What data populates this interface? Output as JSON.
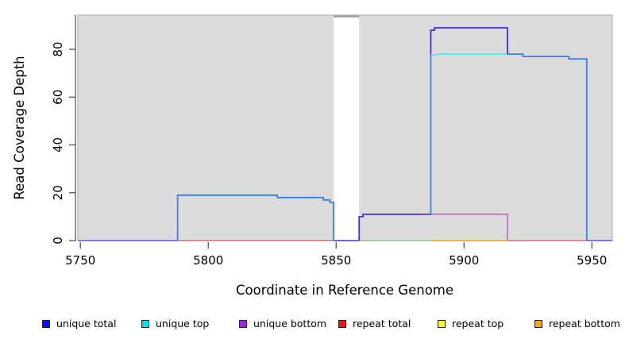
{
  "figure": {
    "plot_bg": "#DBDBDB",
    "gap_fill": "#FFFFFF",
    "gap_cap_color": "#A5A5A5",
    "box_color": "#ABABAB",
    "axis_color": "#474747",
    "tick_label_color": "#000000"
  },
  "axes": {
    "xlabel": "Coordinate in Reference Genome",
    "ylabel": "Read Coverage Depth",
    "x_ticks": [
      "5750",
      "5800",
      "5850",
      "5900",
      "5950"
    ],
    "y_ticks": [
      "0",
      "20",
      "40",
      "60",
      "80"
    ]
  },
  "legend": {
    "items": [
      {
        "label": "unique total",
        "color": "#1111EE"
      },
      {
        "label": "unique top",
        "color": "#00E1EA"
      },
      {
        "label": "unique bottom",
        "color": "#A020F0"
      },
      {
        "label": "repeat total",
        "color": "#EA1515"
      },
      {
        "label": "repeat top",
        "color": "#FCF52E"
      },
      {
        "label": "repeat bottom",
        "color": "#F6A21C"
      }
    ]
  },
  "chart_data": {
    "type": "line",
    "title": "",
    "xlabel": "Coordinate in Reference Genome",
    "ylabel": "Read Coverage Depth",
    "xlim": [
      5749,
      5958
    ],
    "ylim": [
      0,
      94.3
    ],
    "x_tick_values": [
      5750,
      5800,
      5850,
      5900,
      5950
    ],
    "y_tick_values": [
      0,
      20,
      40,
      60,
      80
    ],
    "grid": false,
    "legend_position": "bottom",
    "gap_region": {
      "x_start": 5849,
      "x_end": 5859
    },
    "series": [
      {
        "name": "unique total",
        "color": "#0000EE",
        "steps": [
          [
            5749,
            0
          ],
          [
            5788,
            19
          ],
          [
            5827,
            18
          ],
          [
            5845,
            17
          ],
          [
            5847.5,
            16
          ],
          [
            5849,
            0
          ],
          [
            5859,
            11
          ],
          [
            5887,
            88
          ],
          [
            5888.5,
            89
          ],
          [
            5917,
            78
          ],
          [
            5923,
            77
          ],
          [
            5941,
            76
          ],
          [
            5948,
            0
          ],
          [
            5958,
            0
          ]
        ]
      },
      {
        "name": "unique top",
        "color": "#00E5EE",
        "steps": [
          [
            5749,
            0
          ],
          [
            5788,
            19
          ],
          [
            5827,
            18
          ],
          [
            5845,
            17
          ],
          [
            5847.5,
            16
          ],
          [
            5849,
            0
          ],
          [
            5887.5,
            78
          ],
          [
            5917,
            0
          ],
          [
            5958,
            0
          ]
        ]
      },
      {
        "name": "unique bottom",
        "color": "#A020F0",
        "steps": [
          [
            5749,
            0
          ],
          [
            5859,
            10
          ],
          [
            5860.5,
            11
          ],
          [
            5917,
            0
          ],
          [
            5958,
            0
          ]
        ]
      },
      {
        "name": "repeat total",
        "color": "#EE0000",
        "steps": [
          [
            5749,
            0
          ],
          [
            5958,
            0
          ]
        ]
      },
      {
        "name": "repeat top",
        "color": "#FFFF00",
        "steps": [
          [
            5749,
            0
          ],
          [
            5958,
            0
          ]
        ]
      },
      {
        "name": "repeat bottom",
        "color": "#FFA500",
        "steps": [
          [
            5749,
            0
          ],
          [
            5958,
            0
          ]
        ]
      }
    ],
    "visible_segments": [
      {
        "name": "baseline-blue-left",
        "color": "#5A55E8",
        "width": 1.6,
        "points": [
          [
            5749,
            0
          ],
          [
            5788,
            0
          ]
        ]
      },
      {
        "name": "baseline-red-mid",
        "color": "#E4626E",
        "width": 1.4,
        "points": [
          [
            5788,
            0
          ],
          [
            5849,
            0
          ]
        ]
      },
      {
        "name": "baseline-blue-gap",
        "color": "#5A4FE0",
        "width": 1.8,
        "points": [
          [
            5849,
            0
          ],
          [
            5859,
            0
          ]
        ]
      },
      {
        "name": "baseline-green",
        "color": "#7CC87C",
        "width": 1.6,
        "points": [
          [
            5859,
            0
          ],
          [
            5887,
            0
          ]
        ]
      },
      {
        "name": "baseline-orange",
        "color": "#FFA526",
        "width": 1.8,
        "points": [
          [
            5887,
            0
          ],
          [
            5917,
            0
          ]
        ]
      },
      {
        "name": "baseline-red-right",
        "color": "#E4626E",
        "width": 1.4,
        "points": [
          [
            5917,
            0
          ],
          [
            5948,
            0
          ]
        ]
      },
      {
        "name": "baseline-blue-right",
        "color": "#6F62EE",
        "width": 1.8,
        "points": [
          [
            5948,
            0
          ],
          [
            5958,
            0
          ]
        ]
      },
      {
        "name": "unique-bottom-visible",
        "color": "#BC59DB",
        "width": 1.5,
        "points": [
          [
            5887,
            11
          ],
          [
            5917,
            11
          ],
          [
            5917,
            0
          ]
        ]
      },
      {
        "name": "unique-total-bottom-step",
        "color": "#4B30D0",
        "width": 1.8,
        "points": [
          [
            5859,
            0
          ],
          [
            5859,
            10
          ],
          [
            5860.5,
            10
          ],
          [
            5860.5,
            11
          ],
          [
            5887,
            11
          ]
        ]
      },
      {
        "name": "unique-total-left-plateau",
        "color": "#3B7EF0",
        "width": 1.8,
        "points": [
          [
            5788,
            0
          ],
          [
            5788,
            19
          ],
          [
            5827,
            19
          ],
          [
            5827,
            18
          ],
          [
            5845,
            18
          ],
          [
            5845,
            17
          ],
          [
            5847.5,
            17
          ],
          [
            5847.5,
            16
          ],
          [
            5849,
            16
          ],
          [
            5849,
            0
          ]
        ]
      },
      {
        "name": "unique-total-rise",
        "color": "#3B7EF0",
        "width": 1.8,
        "points": [
          [
            5887,
            11
          ],
          [
            5887,
            78
          ]
        ]
      },
      {
        "name": "unique-top-visible",
        "color": "#49E9EC",
        "width": 1.5,
        "points": [
          [
            5887.5,
            77.5
          ],
          [
            5889,
            77.5
          ],
          [
            5889,
            78
          ],
          [
            5917,
            78
          ]
        ]
      },
      {
        "name": "unique-total-right",
        "color": "#3B7EF0",
        "width": 1.8,
        "points": [
          [
            5917,
            78
          ],
          [
            5923,
            78
          ],
          [
            5923,
            77
          ],
          [
            5941,
            77
          ],
          [
            5941,
            76
          ],
          [
            5948,
            76
          ],
          [
            5948,
            0
          ]
        ]
      },
      {
        "name": "unique-total-top",
        "color": "#3A2FE2",
        "width": 1.8,
        "points": [
          [
            5887,
            78
          ],
          [
            5887,
            88
          ],
          [
            5888.5,
            88
          ],
          [
            5888.5,
            89
          ],
          [
            5917,
            89
          ],
          [
            5917,
            78
          ]
        ]
      }
    ]
  }
}
